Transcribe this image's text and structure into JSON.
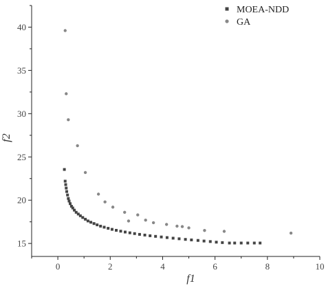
{
  "chart_data": {
    "type": "scatter",
    "xlabel": "f1",
    "ylabel": "f2",
    "xlim": [
      -1,
      10
    ],
    "ylim": [
      13.5,
      42.5
    ],
    "xticks": [
      0,
      2,
      4,
      6,
      8,
      10
    ],
    "yticks": [
      15,
      20,
      25,
      30,
      35,
      40
    ],
    "grid": false,
    "legend_position": "top-right",
    "series": [
      {
        "name": "MOEA-NDD",
        "marker": "square",
        "color": "#444444",
        "points": [
          [
            0.25,
            23.55
          ],
          [
            0.28,
            22.2
          ],
          [
            0.3,
            21.8
          ],
          [
            0.32,
            21.4
          ],
          [
            0.34,
            21.0
          ],
          [
            0.37,
            20.6
          ],
          [
            0.4,
            20.2
          ],
          [
            0.43,
            19.9
          ],
          [
            0.47,
            19.6
          ],
          [
            0.52,
            19.3
          ],
          [
            0.57,
            19.1
          ],
          [
            0.63,
            18.85
          ],
          [
            0.7,
            18.6
          ],
          [
            0.78,
            18.4
          ],
          [
            0.86,
            18.2
          ],
          [
            0.95,
            18.0
          ],
          [
            1.05,
            17.8
          ],
          [
            1.15,
            17.6
          ],
          [
            1.26,
            17.45
          ],
          [
            1.38,
            17.3
          ],
          [
            1.5,
            17.15
          ],
          [
            1.63,
            17.0
          ],
          [
            1.77,
            16.88
          ],
          [
            1.92,
            16.75
          ],
          [
            2.07,
            16.63
          ],
          [
            2.23,
            16.52
          ],
          [
            2.4,
            16.42
          ],
          [
            2.57,
            16.32
          ],
          [
            2.75,
            16.23
          ],
          [
            2.93,
            16.14
          ],
          [
            3.12,
            16.05
          ],
          [
            3.32,
            15.97
          ],
          [
            3.52,
            15.89
          ],
          [
            3.73,
            15.82
          ],
          [
            3.95,
            15.75
          ],
          [
            4.17,
            15.68
          ],
          [
            4.4,
            15.61
          ],
          [
            4.63,
            15.54
          ],
          [
            4.87,
            15.47
          ],
          [
            5.1,
            15.41
          ],
          [
            5.35,
            15.35
          ],
          [
            5.58,
            15.28
          ],
          [
            5.82,
            15.22
          ],
          [
            6.05,
            15.15
          ],
          [
            6.28,
            15.1
          ],
          [
            6.55,
            15.05
          ],
          [
            6.75,
            15.05
          ],
          [
            7.0,
            15.05
          ],
          [
            7.25,
            15.05
          ],
          [
            7.5,
            15.05
          ],
          [
            7.72,
            15.05
          ]
        ]
      },
      {
        "name": "GA",
        "marker": "circle",
        "color": "#888888",
        "points": [
          [
            0.28,
            39.6
          ],
          [
            0.32,
            32.3
          ],
          [
            0.4,
            29.3
          ],
          [
            0.75,
            26.3
          ],
          [
            1.05,
            23.2
          ],
          [
            1.55,
            20.7
          ],
          [
            1.8,
            19.8
          ],
          [
            2.1,
            19.2
          ],
          [
            2.55,
            18.6
          ],
          [
            2.7,
            17.6
          ],
          [
            3.05,
            18.3
          ],
          [
            3.35,
            17.7
          ],
          [
            3.65,
            17.4
          ],
          [
            4.15,
            17.2
          ],
          [
            4.55,
            17.0
          ],
          [
            4.75,
            16.95
          ],
          [
            5.0,
            16.8
          ],
          [
            5.6,
            16.5
          ],
          [
            6.35,
            16.4
          ],
          [
            8.9,
            16.2
          ]
        ]
      }
    ]
  }
}
